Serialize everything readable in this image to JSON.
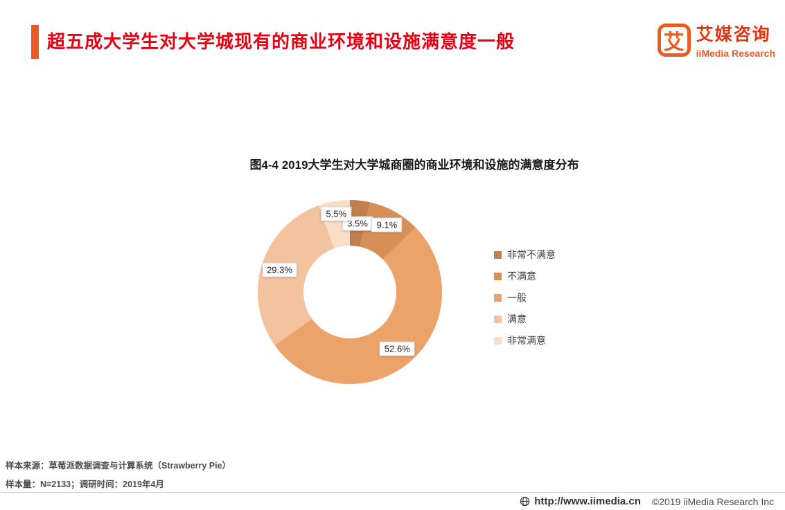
{
  "header": {
    "title": "超五成大学生对大学城现有的商业环境和设施满意度一般",
    "accent_color": "#ec5a24",
    "title_color": "#e60012"
  },
  "logo": {
    "glyph": "艾",
    "name_cn": "艾媒咨询",
    "name_en": "iiMedia Research"
  },
  "chart_data": {
    "type": "pie",
    "subtype": "donut",
    "title": "图4-4 2019大学生对大学城商圈的商业环境和设施的满意度分布",
    "categories": [
      "非常不满意",
      "不满意",
      "一般",
      "满意",
      "非常满意"
    ],
    "values": [
      3.5,
      9.1,
      52.6,
      29.3,
      5.5
    ],
    "unit": "%",
    "colors": [
      "#c17e4f",
      "#d69057",
      "#eba369",
      "#f3c29e",
      "#f8dec6"
    ],
    "legend_position": "right",
    "start_angle_deg": 0,
    "direction": "clockwise",
    "label_radius_factors": [
      0.75,
      0.83,
      0.8,
      0.8,
      0.86
    ]
  },
  "footer": {
    "source_line": "样本来源：草莓派数据调查与计算系统（Strawberry Pie）",
    "sample_line": "样本量：N=2133；调研时间：2019年4月"
  },
  "bottombar": {
    "url": "http://www.iimedia.cn",
    "copyright": "©2019  iiMedia Research Inc"
  }
}
